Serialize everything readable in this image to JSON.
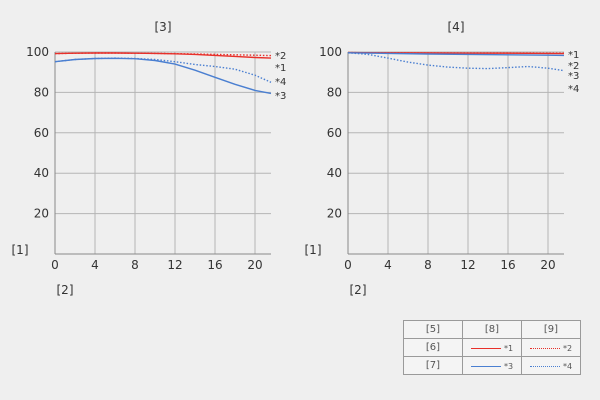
{
  "chart_data": [
    {
      "type": "line",
      "title": "[3]",
      "ylabel": "[1]",
      "xlabel": "[2]",
      "xlim": [
        0,
        21.6
      ],
      "ylim": [
        0,
        100
      ],
      "xticks": [
        0,
        4,
        8,
        12,
        16,
        20
      ],
      "yticks": [
        20,
        40,
        60,
        80,
        100
      ],
      "grid": true,
      "series": [
        {
          "name": "*1",
          "style": "solid",
          "color": "#e8302a",
          "x": [
            0,
            2,
            4,
            6,
            8,
            10,
            12,
            14,
            16,
            18,
            20,
            21.6
          ],
          "y": [
            99.2,
            99.4,
            99.5,
            99.5,
            99.4,
            99.3,
            99.1,
            98.8,
            98.3,
            97.8,
            97.3,
            97.0
          ]
        },
        {
          "name": "*2",
          "style": "dotted",
          "color": "#e8302a",
          "x": [
            0,
            2,
            4,
            6,
            8,
            10,
            12,
            14,
            16,
            18,
            20,
            21.6
          ],
          "y": [
            99.2,
            99.4,
            99.5,
            99.5,
            99.4,
            99.3,
            99.2,
            99.0,
            98.8,
            98.6,
            98.4,
            98.2
          ]
        },
        {
          "name": "*3",
          "style": "solid",
          "color": "#4a7fd1",
          "x": [
            0,
            2,
            4,
            6,
            8,
            10,
            12,
            14,
            16,
            18,
            20,
            21.6
          ],
          "y": [
            95.2,
            96.3,
            96.8,
            96.9,
            96.7,
            95.8,
            94.0,
            91.0,
            87.5,
            84.0,
            81.0,
            79.5
          ]
        },
        {
          "name": "*4",
          "style": "dotted",
          "color": "#4a7fd1",
          "x": [
            0,
            2,
            4,
            6,
            8,
            10,
            12,
            14,
            16,
            18,
            20,
            21.6
          ],
          "y": [
            95.2,
            96.3,
            96.8,
            97.0,
            96.8,
            96.3,
            95.2,
            93.8,
            92.8,
            91.5,
            88.5,
            85.0
          ]
        }
      ]
    },
    {
      "type": "line",
      "title": "[4]",
      "ylabel": "[1]",
      "xlabel": "[2]",
      "xlim": [
        0,
        21.6
      ],
      "ylim": [
        0,
        100
      ],
      "xticks": [
        0,
        4,
        8,
        12,
        16,
        20
      ],
      "yticks": [
        20,
        40,
        60,
        80,
        100
      ],
      "grid": true,
      "series": [
        {
          "name": "*1",
          "style": "solid",
          "color": "#e8302a",
          "x": [
            0,
            4,
            8,
            12,
            16,
            20,
            21.6
          ],
          "y": [
            99.7,
            99.6,
            99.5,
            99.4,
            99.4,
            99.3,
            99.2
          ]
        },
        {
          "name": "*2",
          "style": "dotted",
          "color": "#e8302a",
          "x": [
            0,
            4,
            8,
            12,
            16,
            20,
            21.6
          ],
          "y": [
            99.7,
            99.6,
            99.5,
            99.5,
            99.5,
            99.4,
            99.4
          ]
        },
        {
          "name": "*3",
          "style": "solid",
          "color": "#4a7fd1",
          "x": [
            0,
            4,
            8,
            12,
            16,
            20,
            21.6
          ],
          "y": [
            99.6,
            99.3,
            99.0,
            98.8,
            98.6,
            98.4,
            98.3
          ]
        },
        {
          "name": "*4",
          "style": "dotted",
          "color": "#4a7fd1",
          "x": [
            0,
            2,
            4,
            6,
            8,
            10,
            12,
            14,
            16,
            18,
            20,
            21.6
          ],
          "y": [
            99.6,
            98.8,
            97.0,
            95.0,
            93.5,
            92.5,
            92.0,
            91.8,
            92.3,
            92.8,
            92.0,
            90.8
          ]
        }
      ]
    }
  ],
  "legend": {
    "headers": [
      "[5]",
      "[8]",
      "[9]"
    ],
    "rows": [
      {
        "label": "[6]",
        "solid": "*1",
        "dotted": "*2",
        "color": "#e8302a"
      },
      {
        "label": "[7]",
        "solid": "*3",
        "dotted": "*4",
        "color": "#4a7fd1"
      }
    ]
  }
}
